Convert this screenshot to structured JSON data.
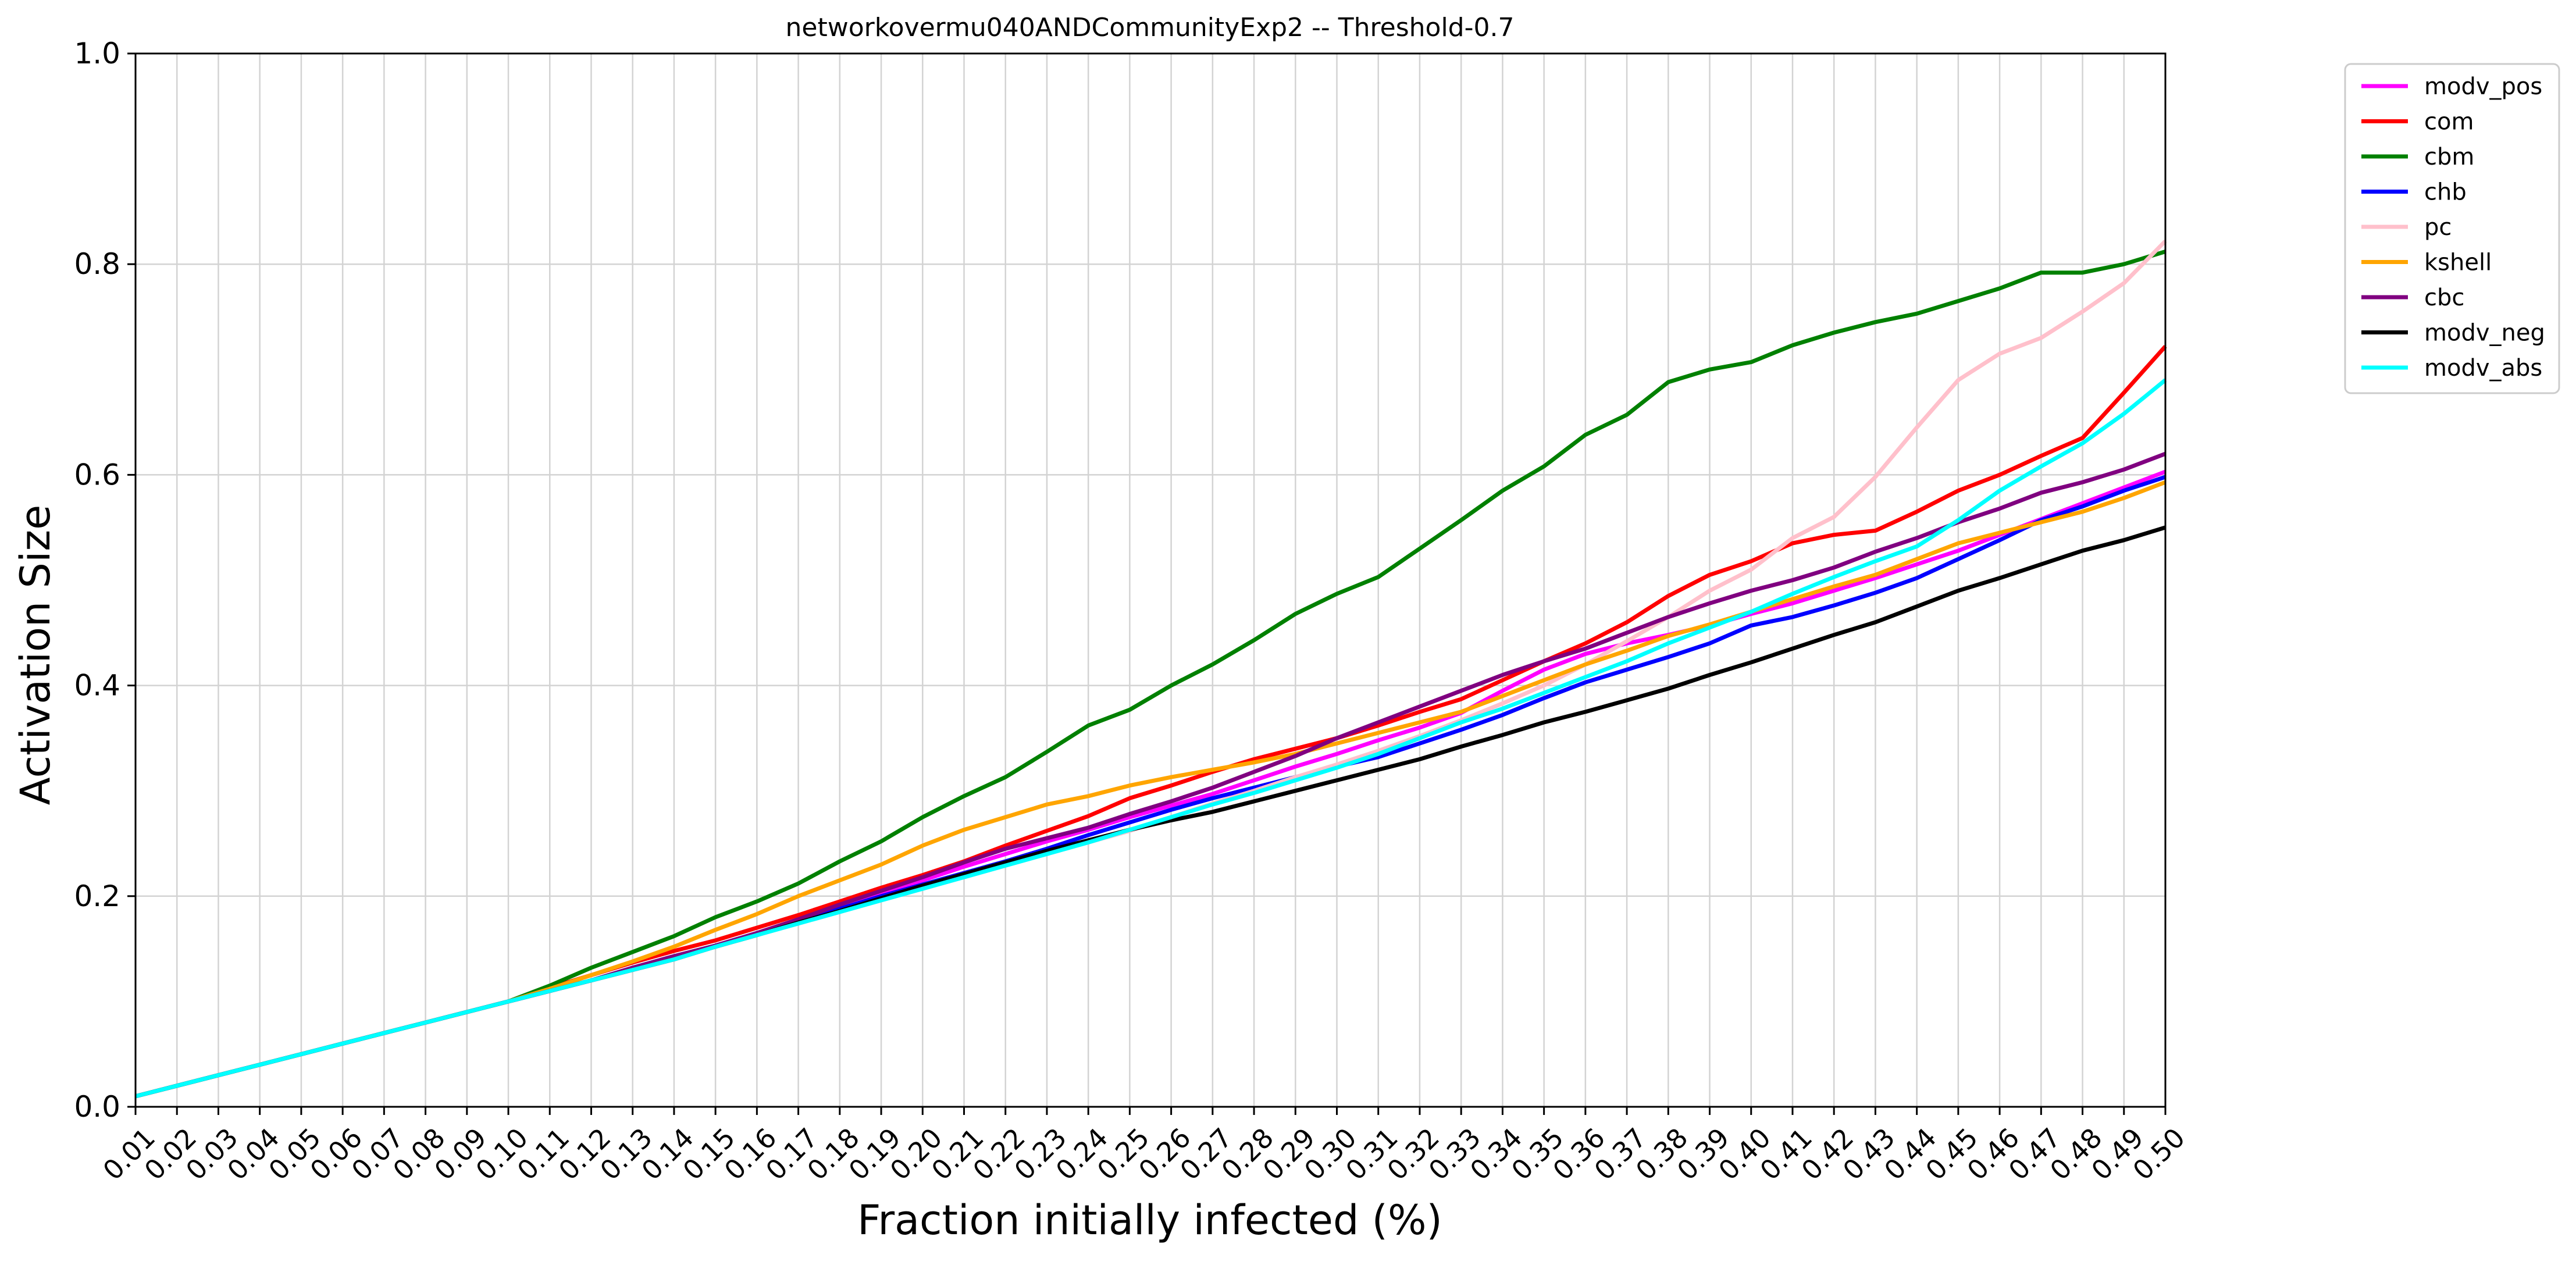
{
  "chart_data": {
    "type": "line",
    "title": "networkovermu040ANDCommunityExp2 -- Threshold-0.7",
    "xlabel": "Fraction initially infected (%)",
    "ylabel": "Activation Size",
    "ylim": [
      0,
      1.0
    ],
    "yticks": [
      "0.0",
      "0.2",
      "0.4",
      "0.6",
      "0.8",
      "1.0"
    ],
    "grid": true,
    "legend_position": "outside-top-right",
    "x": [
      "0.01",
      "0.02",
      "0.03",
      "0.04",
      "0.05",
      "0.06",
      "0.07",
      "0.08",
      "0.09",
      "0.10",
      "0.11",
      "0.12",
      "0.13",
      "0.14",
      "0.15",
      "0.16",
      "0.17",
      "0.18",
      "0.19",
      "0.20",
      "0.21",
      "0.22",
      "0.23",
      "0.24",
      "0.25",
      "0.26",
      "0.27",
      "0.28",
      "0.29",
      "0.30",
      "0.31",
      "0.32",
      "0.33",
      "0.34",
      "0.35",
      "0.36",
      "0.37",
      "0.38",
      "0.39",
      "0.40",
      "0.41",
      "0.42",
      "0.43",
      "0.44",
      "0.45",
      "0.46",
      "0.47",
      "0.48",
      "0.49",
      "0.50"
    ],
    "series": [
      {
        "name": "modv_pos",
        "color": "#ff00ff",
        "values": [
          0.01,
          0.02,
          0.03,
          0.04,
          0.05,
          0.06,
          0.07,
          0.08,
          0.09,
          0.1,
          0.11,
          0.12,
          0.13,
          0.14,
          0.153,
          0.165,
          0.178,
          0.19,
          0.203,
          0.215,
          0.228,
          0.24,
          0.252,
          0.263,
          0.275,
          0.286,
          0.297,
          0.31,
          0.323,
          0.335,
          0.348,
          0.36,
          0.374,
          0.395,
          0.415,
          0.43,
          0.44,
          0.448,
          0.457,
          0.468,
          0.478,
          0.49,
          0.502,
          0.515,
          0.528,
          0.543,
          0.558,
          0.573,
          0.588,
          0.603
        ]
      },
      {
        "name": "com",
        "color": "#ff0000",
        "values": [
          0.01,
          0.02,
          0.03,
          0.04,
          0.05,
          0.06,
          0.07,
          0.08,
          0.09,
          0.1,
          0.113,
          0.125,
          0.137,
          0.148,
          0.158,
          0.17,
          0.182,
          0.195,
          0.208,
          0.22,
          0.233,
          0.248,
          0.262,
          0.276,
          0.293,
          0.305,
          0.318,
          0.33,
          0.34,
          0.35,
          0.362,
          0.375,
          0.387,
          0.405,
          0.423,
          0.44,
          0.46,
          0.485,
          0.505,
          0.518,
          0.535,
          0.543,
          0.547,
          0.565,
          0.585,
          0.6,
          0.618,
          0.635,
          0.678,
          0.722
        ]
      },
      {
        "name": "cbm",
        "color": "#008000",
        "values": [
          0.01,
          0.02,
          0.03,
          0.04,
          0.05,
          0.06,
          0.07,
          0.08,
          0.09,
          0.1,
          0.115,
          0.132,
          0.147,
          0.162,
          0.18,
          0.195,
          0.212,
          0.233,
          0.252,
          0.275,
          0.295,
          0.313,
          0.337,
          0.362,
          0.377,
          0.4,
          0.42,
          0.443,
          0.468,
          0.487,
          0.503,
          0.53,
          0.557,
          0.585,
          0.608,
          0.638,
          0.657,
          0.688,
          0.7,
          0.707,
          0.723,
          0.735,
          0.745,
          0.753,
          0.765,
          0.777,
          0.792,
          0.792,
          0.8,
          0.812
        ]
      },
      {
        "name": "chb",
        "color": "#0000ff",
        "values": [
          0.01,
          0.02,
          0.03,
          0.04,
          0.05,
          0.06,
          0.07,
          0.08,
          0.09,
          0.1,
          0.11,
          0.12,
          0.132,
          0.143,
          0.153,
          0.165,
          0.177,
          0.188,
          0.2,
          0.211,
          0.222,
          0.233,
          0.245,
          0.258,
          0.27,
          0.282,
          0.293,
          0.303,
          0.313,
          0.323,
          0.332,
          0.345,
          0.358,
          0.372,
          0.388,
          0.403,
          0.415,
          0.427,
          0.44,
          0.457,
          0.465,
          0.476,
          0.488,
          0.502,
          0.52,
          0.538,
          0.557,
          0.57,
          0.585,
          0.598
        ]
      },
      {
        "name": "pc",
        "color": "#ffc0cb",
        "values": [
          0.01,
          0.02,
          0.03,
          0.04,
          0.05,
          0.06,
          0.07,
          0.08,
          0.09,
          0.1,
          0.11,
          0.12,
          0.13,
          0.14,
          0.152,
          0.163,
          0.174,
          0.185,
          0.196,
          0.207,
          0.218,
          0.229,
          0.24,
          0.251,
          0.262,
          0.275,
          0.288,
          0.3,
          0.313,
          0.325,
          0.338,
          0.352,
          0.367,
          0.383,
          0.4,
          0.42,
          0.442,
          0.465,
          0.49,
          0.51,
          0.54,
          0.56,
          0.598,
          0.645,
          0.69,
          0.715,
          0.73,
          0.755,
          0.782,
          0.822
        ]
      },
      {
        "name": "kshell",
        "color": "#ffa500",
        "values": [
          0.01,
          0.02,
          0.03,
          0.04,
          0.05,
          0.06,
          0.07,
          0.08,
          0.09,
          0.1,
          0.112,
          0.125,
          0.138,
          0.152,
          0.168,
          0.183,
          0.2,
          0.215,
          0.23,
          0.248,
          0.263,
          0.275,
          0.287,
          0.295,
          0.305,
          0.313,
          0.32,
          0.327,
          0.335,
          0.345,
          0.355,
          0.365,
          0.375,
          0.39,
          0.405,
          0.42,
          0.433,
          0.447,
          0.458,
          0.47,
          0.482,
          0.494,
          0.505,
          0.52,
          0.535,
          0.545,
          0.555,
          0.565,
          0.578,
          0.593
        ]
      },
      {
        "name": "cbc",
        "color": "#800080",
        "values": [
          0.01,
          0.02,
          0.03,
          0.04,
          0.05,
          0.06,
          0.07,
          0.08,
          0.09,
          0.1,
          0.11,
          0.12,
          0.132,
          0.143,
          0.153,
          0.165,
          0.178,
          0.192,
          0.205,
          0.218,
          0.232,
          0.245,
          0.255,
          0.265,
          0.278,
          0.29,
          0.303,
          0.318,
          0.333,
          0.35,
          0.365,
          0.38,
          0.395,
          0.41,
          0.423,
          0.435,
          0.45,
          0.465,
          0.478,
          0.49,
          0.5,
          0.512,
          0.527,
          0.54,
          0.555,
          0.568,
          0.583,
          0.593,
          0.605,
          0.62
        ]
      },
      {
        "name": "modv_neg",
        "color": "#000000",
        "values": [
          0.01,
          0.02,
          0.03,
          0.04,
          0.05,
          0.06,
          0.07,
          0.08,
          0.09,
          0.1,
          0.11,
          0.12,
          0.13,
          0.14,
          0.152,
          0.163,
          0.175,
          0.186,
          0.198,
          0.21,
          0.221,
          0.232,
          0.243,
          0.253,
          0.263,
          0.272,
          0.28,
          0.29,
          0.3,
          0.31,
          0.32,
          0.33,
          0.342,
          0.353,
          0.365,
          0.375,
          0.386,
          0.397,
          0.41,
          0.422,
          0.435,
          0.448,
          0.46,
          0.475,
          0.49,
          0.502,
          0.515,
          0.528,
          0.538,
          0.55
        ]
      },
      {
        "name": "modv_abs",
        "color": "#00ffff",
        "values": [
          0.01,
          0.02,
          0.03,
          0.04,
          0.05,
          0.06,
          0.07,
          0.08,
          0.09,
          0.1,
          0.11,
          0.12,
          0.13,
          0.14,
          0.152,
          0.163,
          0.174,
          0.185,
          0.196,
          0.207,
          0.218,
          0.229,
          0.24,
          0.251,
          0.263,
          0.275,
          0.287,
          0.298,
          0.31,
          0.322,
          0.335,
          0.35,
          0.365,
          0.378,
          0.393,
          0.408,
          0.423,
          0.44,
          0.455,
          0.47,
          0.487,
          0.503,
          0.518,
          0.532,
          0.557,
          0.585,
          0.608,
          0.63,
          0.658,
          0.69
        ]
      }
    ]
  }
}
